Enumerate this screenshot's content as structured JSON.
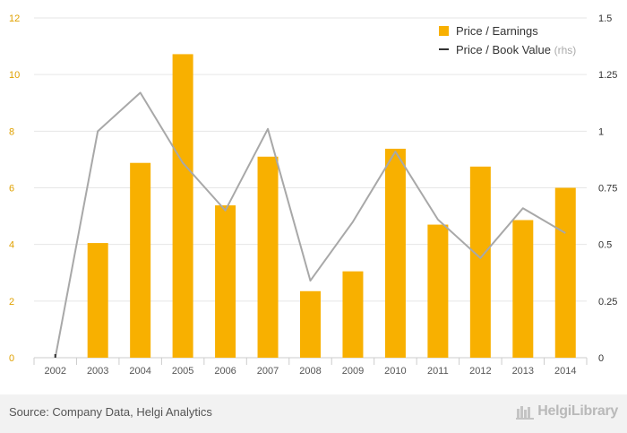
{
  "chart_data": {
    "type": "bar",
    "categories": [
      "2002",
      "2003",
      "2004",
      "2005",
      "2006",
      "2007",
      "2008",
      "2009",
      "2010",
      "2011",
      "2012",
      "2013",
      "2014"
    ],
    "series": [
      {
        "name": "Price / Earnings",
        "kind": "bar",
        "axis": "left",
        "color": "#f8b000",
        "values": [
          0,
          4.05,
          6.88,
          10.72,
          5.38,
          7.1,
          2.35,
          3.05,
          7.38,
          4.7,
          6.75,
          4.86,
          6.0
        ]
      },
      {
        "name": "Price / Book Value",
        "kind": "line",
        "axis": "right",
        "color": "#a8a8a8",
        "values": [
          0,
          1.0,
          1.17,
          0.86,
          0.65,
          1.01,
          0.34,
          0.6,
          0.91,
          0.61,
          0.44,
          0.66,
          0.55
        ]
      }
    ],
    "left_axis": {
      "min": 0,
      "max": 12,
      "ticks": [
        "0",
        "2",
        "4",
        "6",
        "8",
        "10",
        "12"
      ]
    },
    "right_axis": {
      "min": 0,
      "max": 1.5,
      "ticks": [
        "0",
        "0.25",
        "0.5",
        "0.75",
        "1",
        "1.25",
        "1.5"
      ]
    },
    "legend": {
      "placement": "top-right",
      "entries": [
        "Price / Earnings",
        "Price / Book Value"
      ],
      "rhs_note": "(rhs)"
    },
    "grid": true
  },
  "footer": {
    "source": "Source: Company Data, Helgi Analytics",
    "brand": "HelgiLibrary"
  }
}
